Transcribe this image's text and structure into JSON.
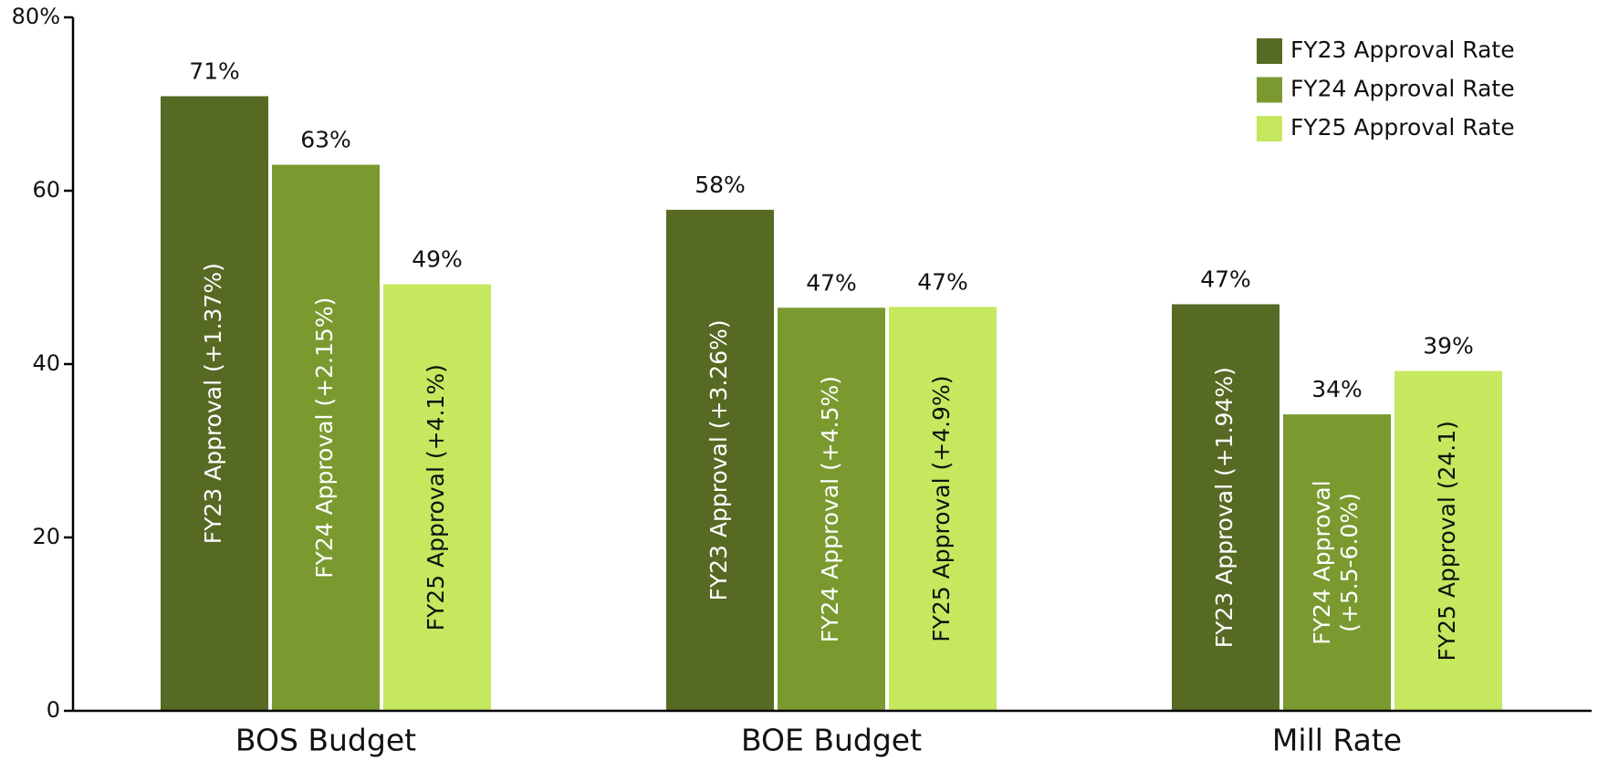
{
  "chart_data": {
    "type": "bar",
    "categories": [
      "BOS Budget",
      "BOE Budget",
      "Mill Rate"
    ],
    "series": [
      {
        "name": "FY23 Approval Rate",
        "color": "#576a24",
        "label_color": "#ffffff",
        "values": [
          70.9,
          57.8,
          46.9
        ],
        "value_labels": [
          "71%",
          "58%",
          "47%"
        ],
        "annotations": [
          [
            "FY23 Approval (+1.37%)"
          ],
          [
            "FY23 Approval (+3.26%)"
          ],
          [
            "FY23 Approval (+1.94%)"
          ]
        ]
      },
      {
        "name": "FY24 Approval Rate",
        "color": "#7a9a30",
        "label_color": "#ffffff",
        "values": [
          63,
          46.5,
          34.2
        ],
        "value_labels": [
          "63%",
          "47%",
          "34%"
        ],
        "annotations": [
          [
            "FY24 Approval (+2.15%)"
          ],
          [
            "FY24 Approval (+4.5%)"
          ],
          [
            "FY24 Approval",
            "(+5.5-6.0%)"
          ]
        ]
      },
      {
        "name": "FY25 Approval Rate",
        "color": "#c5e85e",
        "label_color": "#111111",
        "values": [
          49.2,
          46.6,
          39.2
        ],
        "value_labels": [
          "49%",
          "47%",
          "39%"
        ],
        "annotations": [
          [
            "FY25 Approval (+4.1%)"
          ],
          [
            "FY25 Approval (+4.9%)"
          ],
          [
            "FY25 Approval (24.1)"
          ]
        ]
      }
    ],
    "ylim": [
      0,
      80
    ],
    "yticks": [
      0,
      20,
      40,
      60,
      {
        "value": 80,
        "label": "80%"
      }
    ],
    "legend": "top-right",
    "grid": false
  }
}
